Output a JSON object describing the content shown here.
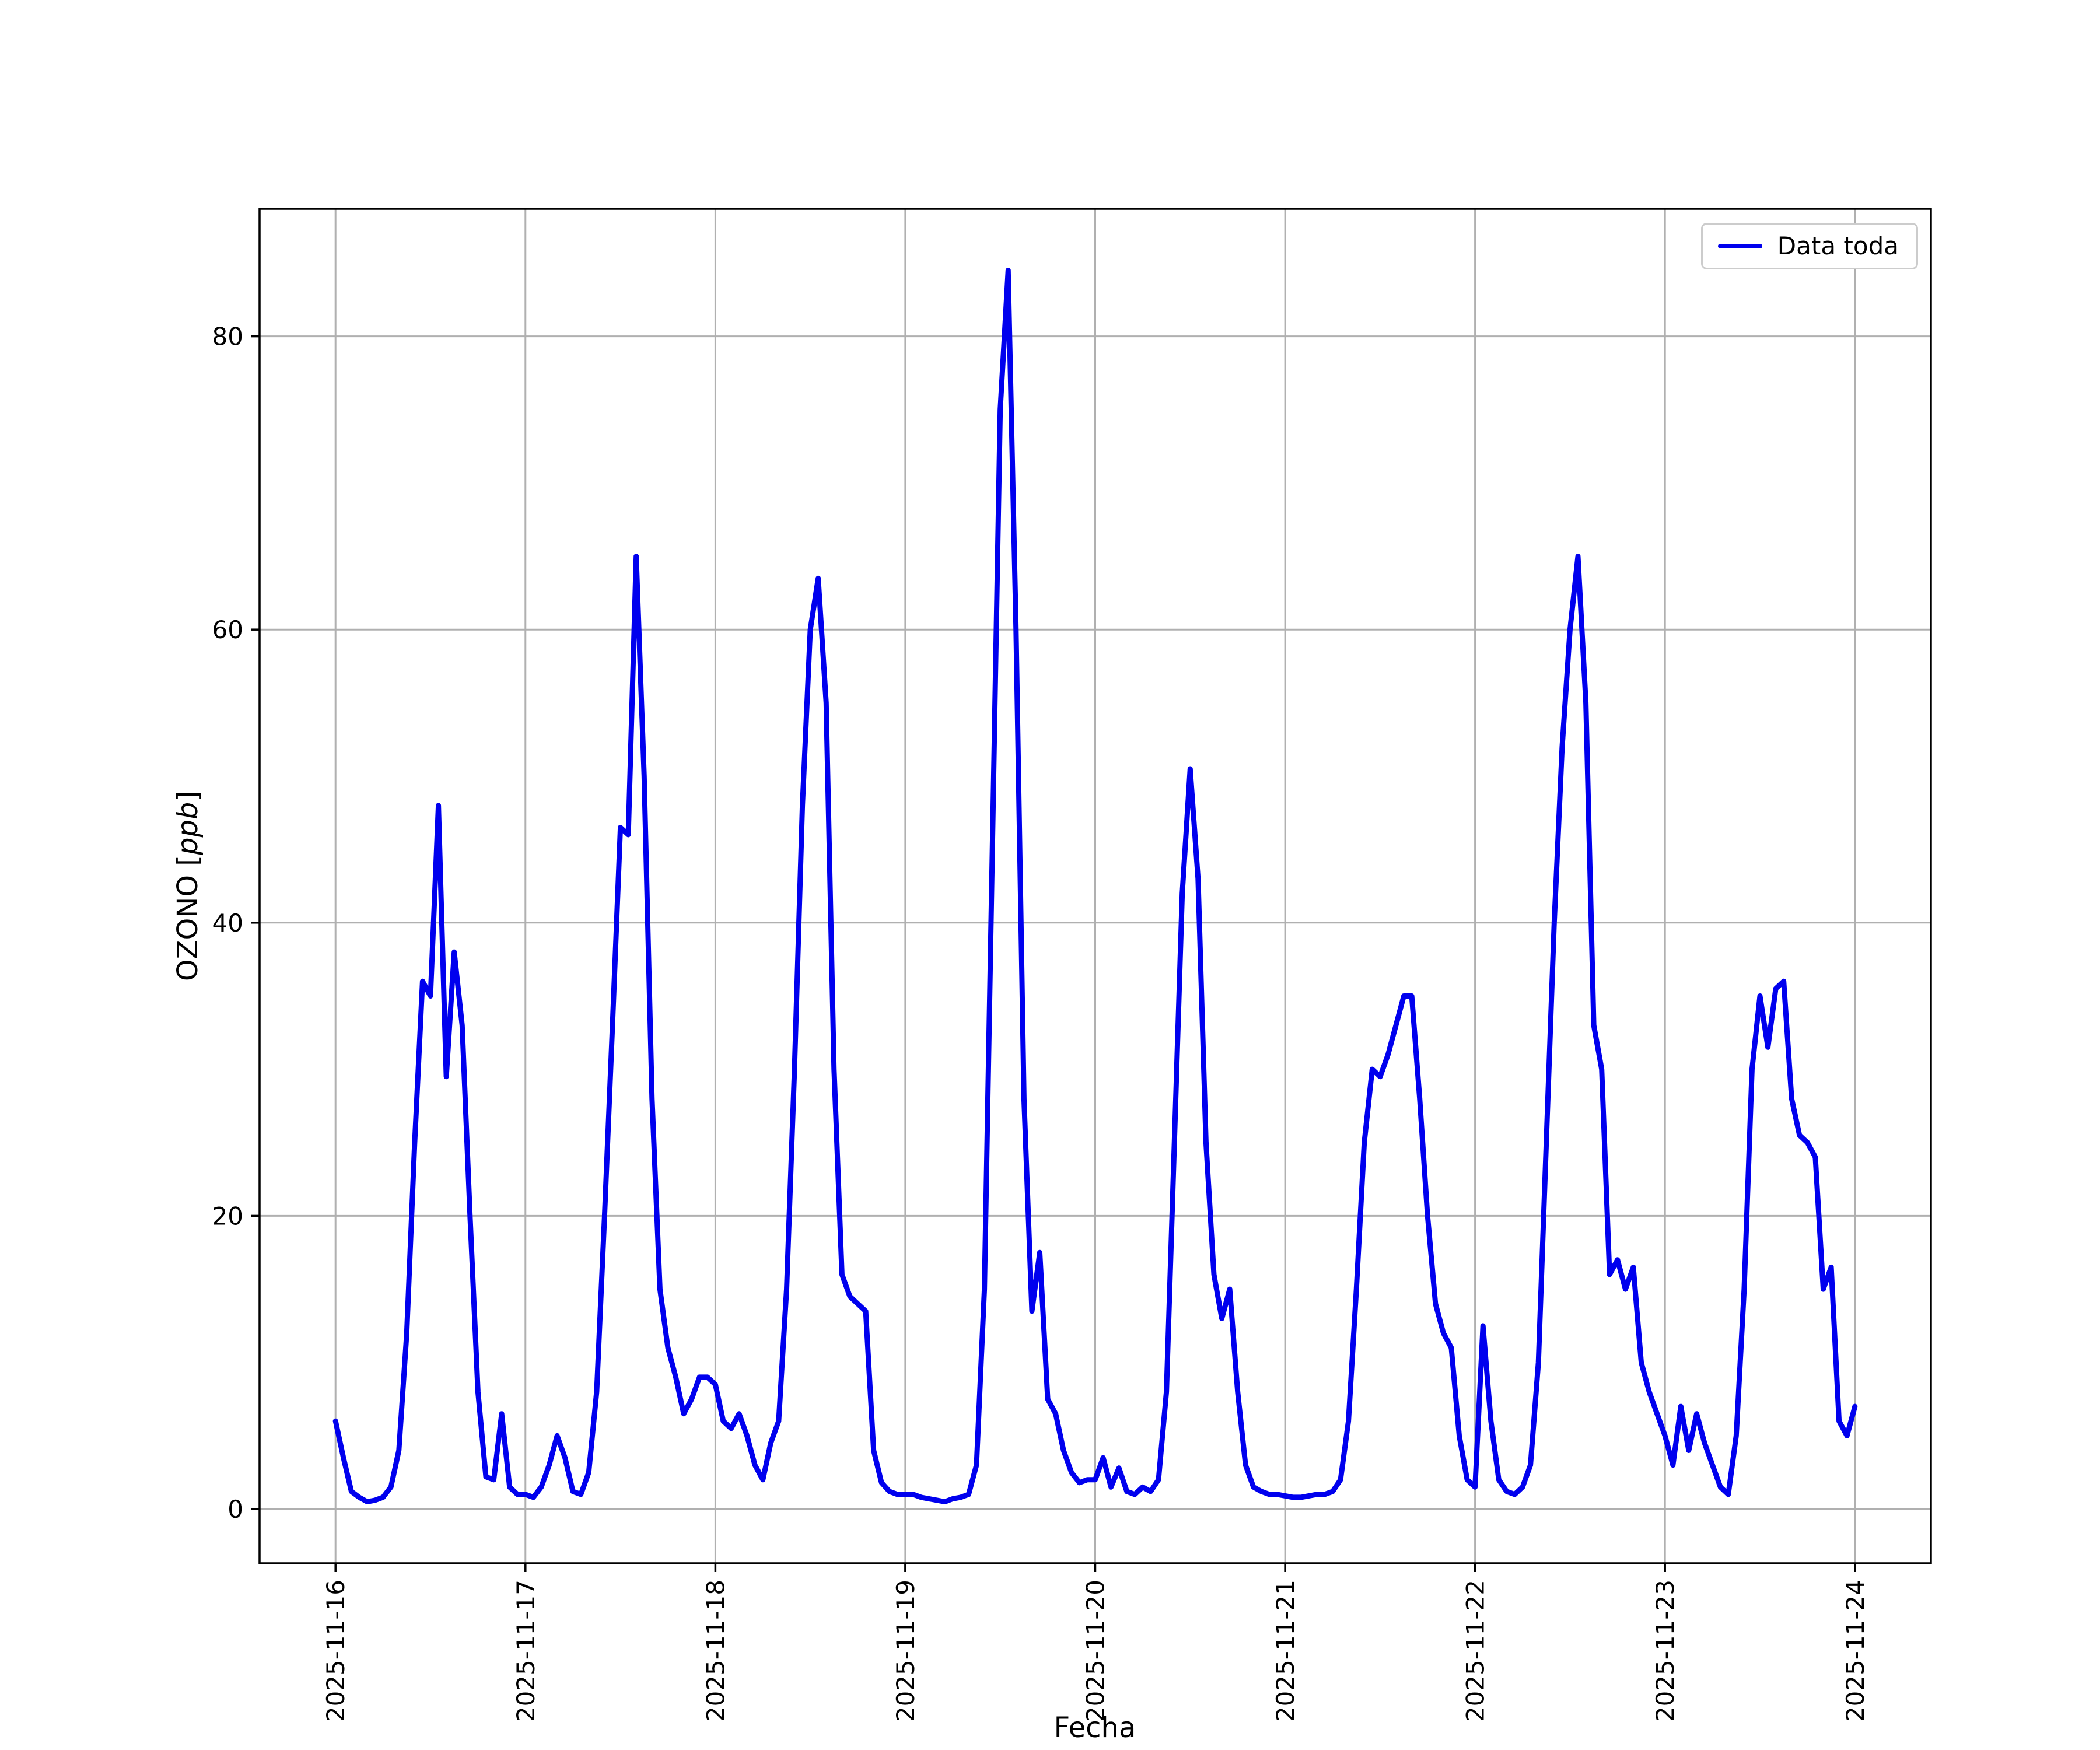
{
  "figure": {
    "xlabel": "Fecha",
    "ylabel_prefix": "OZONO [",
    "ylabel_unit": "ppb",
    "ylabel_suffix": "]",
    "legend": {
      "label": "Data toda"
    }
  },
  "chart_data": {
    "type": "line",
    "title": "",
    "xlabel": "Fecha",
    "ylabel": "OZONO [ppb]",
    "legend": [
      "Data toda"
    ],
    "legend_position": "upper right",
    "grid": true,
    "grid_color": "#b0b0b0",
    "line_color": "#0000ee",
    "x_start": "2025-11-16 00:00",
    "x_step_hours": 1,
    "x_tick_positions_hours": [
      0,
      24,
      48,
      72,
      96,
      120,
      144,
      168,
      192
    ],
    "x_tick_labels": [
      "2025-11-16",
      "2025-11-17",
      "2025-11-18",
      "2025-11-19",
      "2025-11-20",
      "2025-11-21",
      "2025-11-22",
      "2025-11-23",
      "2025-11-24"
    ],
    "y_ticks": [
      0,
      20,
      40,
      60,
      80
    ],
    "xlim_hours": [
      -9.6,
      201.6
    ],
    "ylim": [
      -3.7,
      88.7
    ],
    "values": [
      6.0,
      3.5,
      1.2,
      0.8,
      0.5,
      0.6,
      0.8,
      1.5,
      4.0,
      12.0,
      25.0,
      36.0,
      35.0,
      48.0,
      29.5,
      38.0,
      33.0,
      20.0,
      8.0,
      2.2,
      2.0,
      6.5,
      1.5,
      1.0,
      1.0,
      0.8,
      1.5,
      3.0,
      5.0,
      3.5,
      1.2,
      1.0,
      2.5,
      8.0,
      20.0,
      33.0,
      46.5,
      46.0,
      65.0,
      50.0,
      28.0,
      15.0,
      11.0,
      9.0,
      6.5,
      7.5,
      9.0,
      9.0,
      8.5,
      6.0,
      5.5,
      6.5,
      5.0,
      3.0,
      2.0,
      4.5,
      6.0,
      15.0,
      30.0,
      48.0,
      60.0,
      63.5,
      55.0,
      30.0,
      16.0,
      14.5,
      14.0,
      13.5,
      4.0,
      1.8,
      1.2,
      1.0,
      1.0,
      1.0,
      0.8,
      0.7,
      0.6,
      0.5,
      0.7,
      0.8,
      1.0,
      3.0,
      15.0,
      45.0,
      75.0,
      84.5,
      60.0,
      28.0,
      13.5,
      17.5,
      7.5,
      6.5,
      4.0,
      2.5,
      1.8,
      2.0,
      2.0,
      3.5,
      1.5,
      2.8,
      1.2,
      1.0,
      1.5,
      1.2,
      2.0,
      8.0,
      25.0,
      42.0,
      50.5,
      43.0,
      25.0,
      16.0,
      13.0,
      15.0,
      8.0,
      3.0,
      1.5,
      1.2,
      1.0,
      1.0,
      0.9,
      0.8,
      0.8,
      0.9,
      1.0,
      1.0,
      1.2,
      2.0,
      6.0,
      15.0,
      25.0,
      30.0,
      29.5,
      31.0,
      33.0,
      35.0,
      35.0,
      28.0,
      20.0,
      14.0,
      12.0,
      11.0,
      5.0,
      2.0,
      1.5,
      12.5,
      6.0,
      2.0,
      1.2,
      1.0,
      1.5,
      3.0,
      10.0,
      25.0,
      40.0,
      52.0,
      60.0,
      65.0,
      55.0,
      33.0,
      30.0,
      16.0,
      17.0,
      15.0,
      16.5,
      10.0,
      8.0,
      6.5,
      5.0,
      3.0,
      7.0,
      4.0,
      6.5,
      4.5,
      3.0,
      1.5,
      1.0,
      5.0,
      15.0,
      30.0,
      35.0,
      31.5,
      35.5,
      36.0,
      28.0,
      25.5,
      25.0,
      24.0,
      15.0,
      16.5,
      6.0,
      5.0,
      7.0
    ]
  }
}
